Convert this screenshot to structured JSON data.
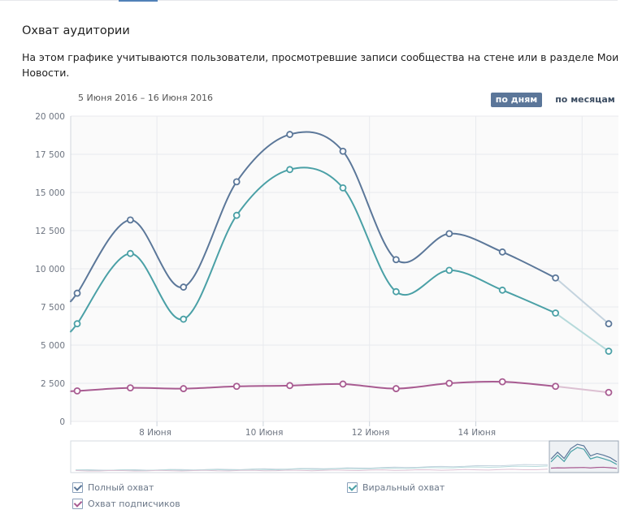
{
  "header": {
    "title": "Охват аудитории",
    "description": "На этом графике учитываются пользователи, просмотревшие записи сообщества на стене или в разделе Мои Новости."
  },
  "controls": {
    "period": "5 Июня 2016 – 16 Июня 2016",
    "by_days": "по дням",
    "by_months": "по месяцам"
  },
  "legend": {
    "full": "Полный охват",
    "viral": "Виральный охват",
    "subscribers": "Охват подписчиков"
  },
  "colors": {
    "full": "#5b7799",
    "viral": "#4aa0a6",
    "subscribers": "#a85b91",
    "grid": "#e8eaee",
    "plot_bg": "#fafafa"
  },
  "chart_data": {
    "type": "line",
    "x": [
      "2016-06-06",
      "2016-06-07",
      "2016-06-08",
      "2016-06-09",
      "2016-06-10",
      "2016-06-11",
      "2016-06-12",
      "2016-06-13",
      "2016-06-14",
      "2016-06-15",
      "2016-06-16"
    ],
    "x_tick_labels": [
      "8 Июня",
      "10 Июня",
      "12 Июня",
      "14 Июня"
    ],
    "y_ticks": [
      0,
      2500,
      5000,
      7500,
      10000,
      12500,
      15000,
      17500,
      20000
    ],
    "y_tick_labels": [
      "0",
      "2 500",
      "5 000",
      "7 500",
      "10 000",
      "12 500",
      "15 000",
      "17 500",
      "20 000"
    ],
    "ylim": [
      0,
      20000
    ],
    "series": [
      {
        "name": "Полный охват",
        "values": [
          8400,
          13200,
          8800,
          15700,
          18800,
          17700,
          10600,
          12300,
          11100,
          9400,
          6400
        ]
      },
      {
        "name": "Виральный охват",
        "values": [
          6400,
          11000,
          6700,
          13500,
          16500,
          15300,
          8500,
          9900,
          8600,
          7100,
          4600
        ]
      },
      {
        "name": "Охват подписчиков",
        "values": [
          2000,
          2200,
          2150,
          2300,
          2350,
          2450,
          2150,
          2500,
          2600,
          2300,
          1900
        ]
      }
    ],
    "grid": true,
    "legend_position": "bottom-left"
  }
}
